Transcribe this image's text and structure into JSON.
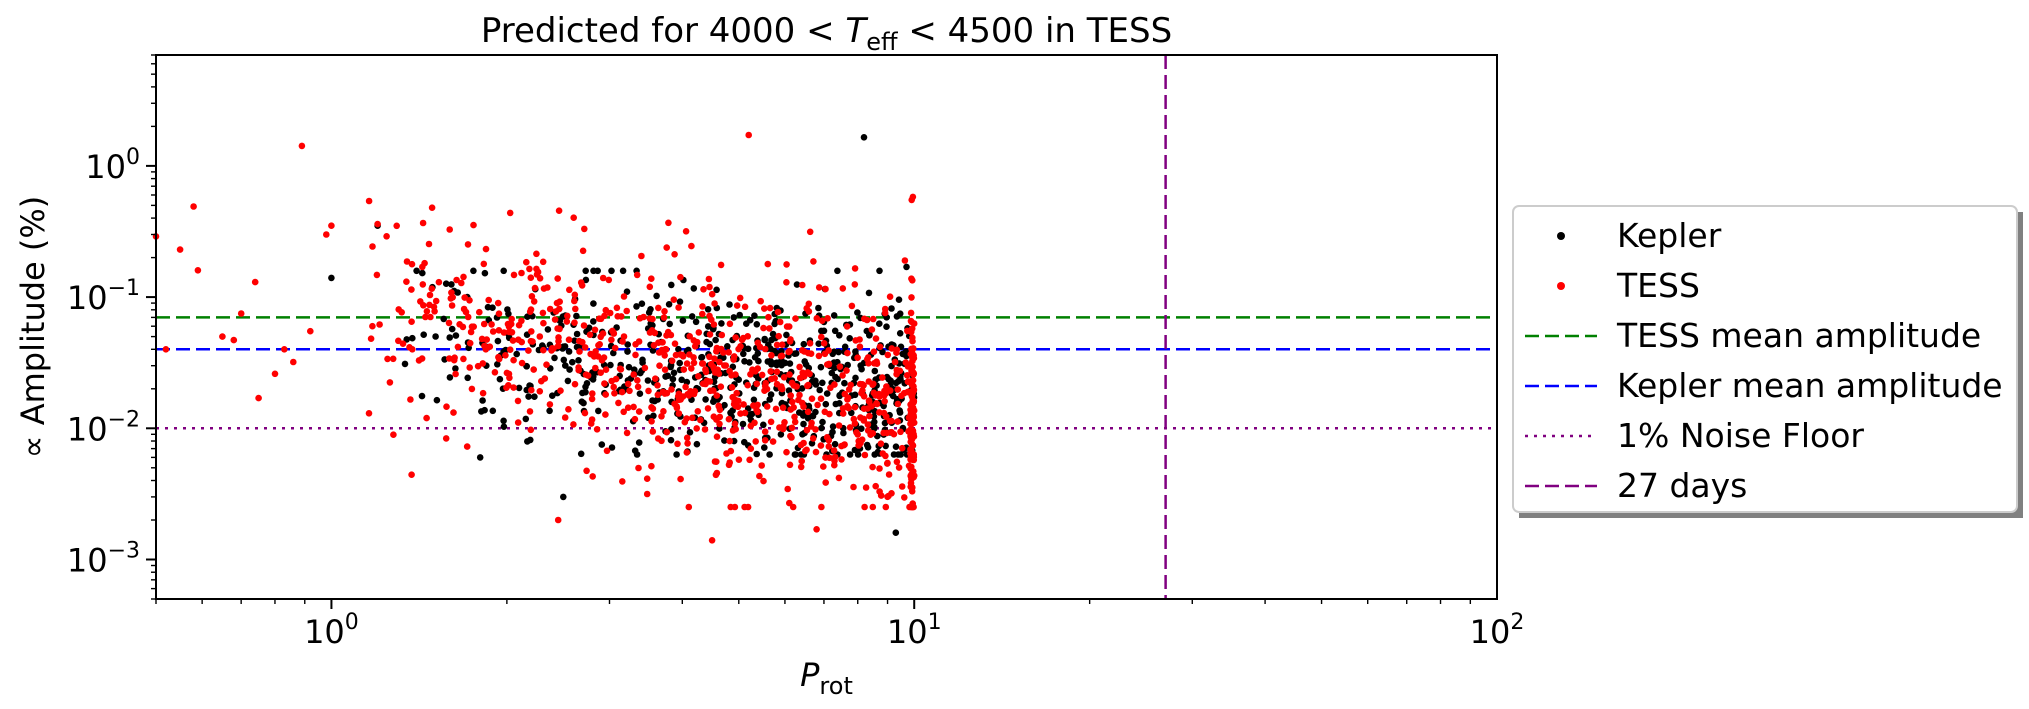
{
  "chart_data": {
    "type": "scatter",
    "title": "Predicted for 4000 < T_eff < 4500 in TESS",
    "title_parts": {
      "prefix": "Predicted for 4000 < ",
      "var": "T",
      "sub": "eff",
      "suffix": " < 4500 in TESS"
    },
    "xlabel": {
      "var": "P",
      "sub": "rot"
    },
    "ylabel": "∝ Amplitude (%)",
    "x_scale": "log",
    "y_scale": "log",
    "xlim": [
      0.5,
      100
    ],
    "ylim": [
      0.0005,
      7
    ],
    "x_ticks": [
      {
        "value": 1,
        "base": "10",
        "exp": "0"
      },
      {
        "value": 10,
        "base": "10",
        "exp": "1"
      },
      {
        "value": 100,
        "base": "10",
        "exp": "2"
      }
    ],
    "y_ticks": [
      {
        "value": 1,
        "base": "10",
        "exp": "0"
      },
      {
        "value": 0.1,
        "base": "10",
        "exp": "−1"
      },
      {
        "value": 0.01,
        "base": "10",
        "exp": "−2"
      },
      {
        "value": 0.001,
        "base": "10",
        "exp": "−3"
      }
    ],
    "legend_position": "outside-right",
    "series": [
      {
        "name": "Kepler",
        "kind": "scatter",
        "color": "#000000",
        "seed": 11,
        "n": 620,
        "points": [
          [
            8.2,
            1.65
          ],
          [
            9.3,
            0.0016
          ],
          [
            1.0,
            0.14
          ],
          [
            1.2,
            0.35
          ],
          [
            2.5,
            0.003
          ],
          [
            1.8,
            0.006
          ],
          [
            9.7,
            0.17
          ]
        ]
      },
      {
        "name": "TESS",
        "kind": "scatter",
        "color": "#ff0000",
        "seed": 29,
        "n": 900,
        "points": [
          [
            0.5,
            0.29
          ],
          [
            0.55,
            0.23
          ],
          [
            0.58,
            0.49
          ],
          [
            0.59,
            0.16
          ],
          [
            0.52,
            0.04
          ],
          [
            0.65,
            0.05
          ],
          [
            0.68,
            0.047
          ],
          [
            0.7,
            0.075
          ],
          [
            0.74,
            0.13
          ],
          [
            0.75,
            0.017
          ],
          [
            0.8,
            0.026
          ],
          [
            0.83,
            0.04
          ],
          [
            0.86,
            0.032
          ],
          [
            0.89,
            1.42
          ],
          [
            0.92,
            0.055
          ],
          [
            0.98,
            0.3
          ],
          [
            1.0,
            0.35
          ],
          [
            1.16,
            0.013
          ],
          [
            1.2,
            0.36
          ],
          [
            5.2,
            1.72
          ],
          [
            4.5,
            0.0014
          ],
          [
            6.8,
            0.0017
          ],
          [
            2.45,
            0.002
          ],
          [
            9.9,
            0.55
          ],
          [
            9.95,
            0.58
          ]
        ]
      },
      {
        "name": "TESS mean amplitude",
        "kind": "hline",
        "y": 0.07,
        "color": "#008000",
        "dash": "dashed"
      },
      {
        "name": "Kepler mean amplitude",
        "kind": "hline",
        "y": 0.04,
        "color": "#0000ff",
        "dash": "dashed"
      },
      {
        "name": "1% Noise Floor",
        "kind": "hline",
        "y": 0.01,
        "color": "#800080",
        "dash": "dotted"
      },
      {
        "name": "27 days",
        "kind": "vline",
        "x": 27,
        "color": "#800080",
        "dash": "dashed"
      }
    ]
  }
}
